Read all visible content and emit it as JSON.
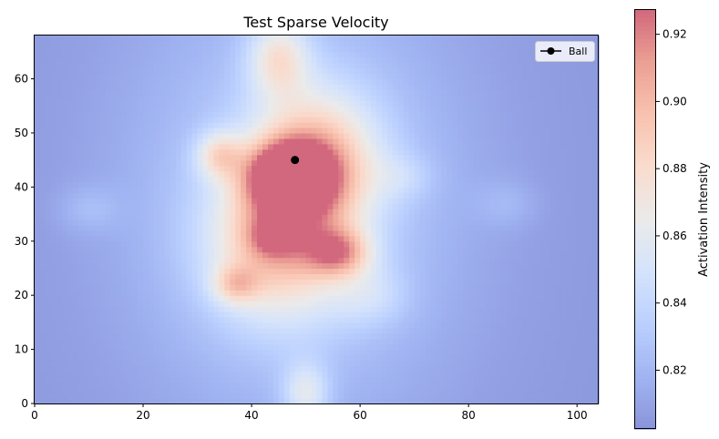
{
  "chart_data": {
    "type": "heatmap",
    "title": "Test Sparse Velocity",
    "xlabel": "",
    "ylabel": "",
    "xlim": [
      0,
      104
    ],
    "ylim": [
      0,
      68
    ],
    "x_ticks": [
      0,
      20,
      40,
      60,
      80,
      100
    ],
    "y_ticks": [
      0,
      10,
      20,
      30,
      40,
      50,
      60
    ],
    "colormap": "coolwarm",
    "alpha": 0.6,
    "colorbar": {
      "label": "Activation Intensity",
      "min": 0.8025,
      "max": 0.9275,
      "ticks": [
        0.82,
        0.84,
        0.86,
        0.88,
        0.9,
        0.92
      ]
    },
    "baseline": 0.805,
    "hotspots": [
      {
        "x": 47,
        "y": 42,
        "amp": 0.115,
        "sx": 5,
        "sy": 4
      },
      {
        "x": 52,
        "y": 45,
        "amp": 0.07,
        "sx": 8,
        "sy": 9
      },
      {
        "x": 45,
        "y": 30,
        "amp": 0.07,
        "sx": 9,
        "sy": 10
      },
      {
        "x": 56,
        "y": 28,
        "amp": 0.06,
        "sx": 4,
        "sy": 3
      },
      {
        "x": 44,
        "y": 31,
        "amp": 0.04,
        "sx": 3,
        "sy": 2.5
      },
      {
        "x": 34,
        "y": 46,
        "amp": 0.045,
        "sx": 3,
        "sy": 3
      },
      {
        "x": 37,
        "y": 22,
        "amp": 0.04,
        "sx": 3,
        "sy": 2.5
      },
      {
        "x": 45,
        "y": 64,
        "amp": 0.05,
        "sx": 4,
        "sy": 5
      },
      {
        "x": 50,
        "y": 2,
        "amp": 0.04,
        "sx": 3,
        "sy": 4
      },
      {
        "x": 48,
        "y": 38,
        "amp": 0.03,
        "sx": 22,
        "sy": 30
      },
      {
        "x": 62,
        "y": 20,
        "amp": 0.02,
        "sx": 5,
        "sy": 4
      },
      {
        "x": 68,
        "y": 42,
        "amp": 0.015,
        "sx": 4,
        "sy": 3
      },
      {
        "x": 10,
        "y": 36,
        "amp": 0.012,
        "sx": 4,
        "sy": 3
      },
      {
        "x": 87,
        "y": 37,
        "amp": 0.01,
        "sx": 4,
        "sy": 3
      }
    ],
    "ball": {
      "x": 48,
      "y": 45,
      "color": "#000000"
    },
    "legend": {
      "entries": [
        "Ball"
      ],
      "placement": "top-right"
    }
  }
}
